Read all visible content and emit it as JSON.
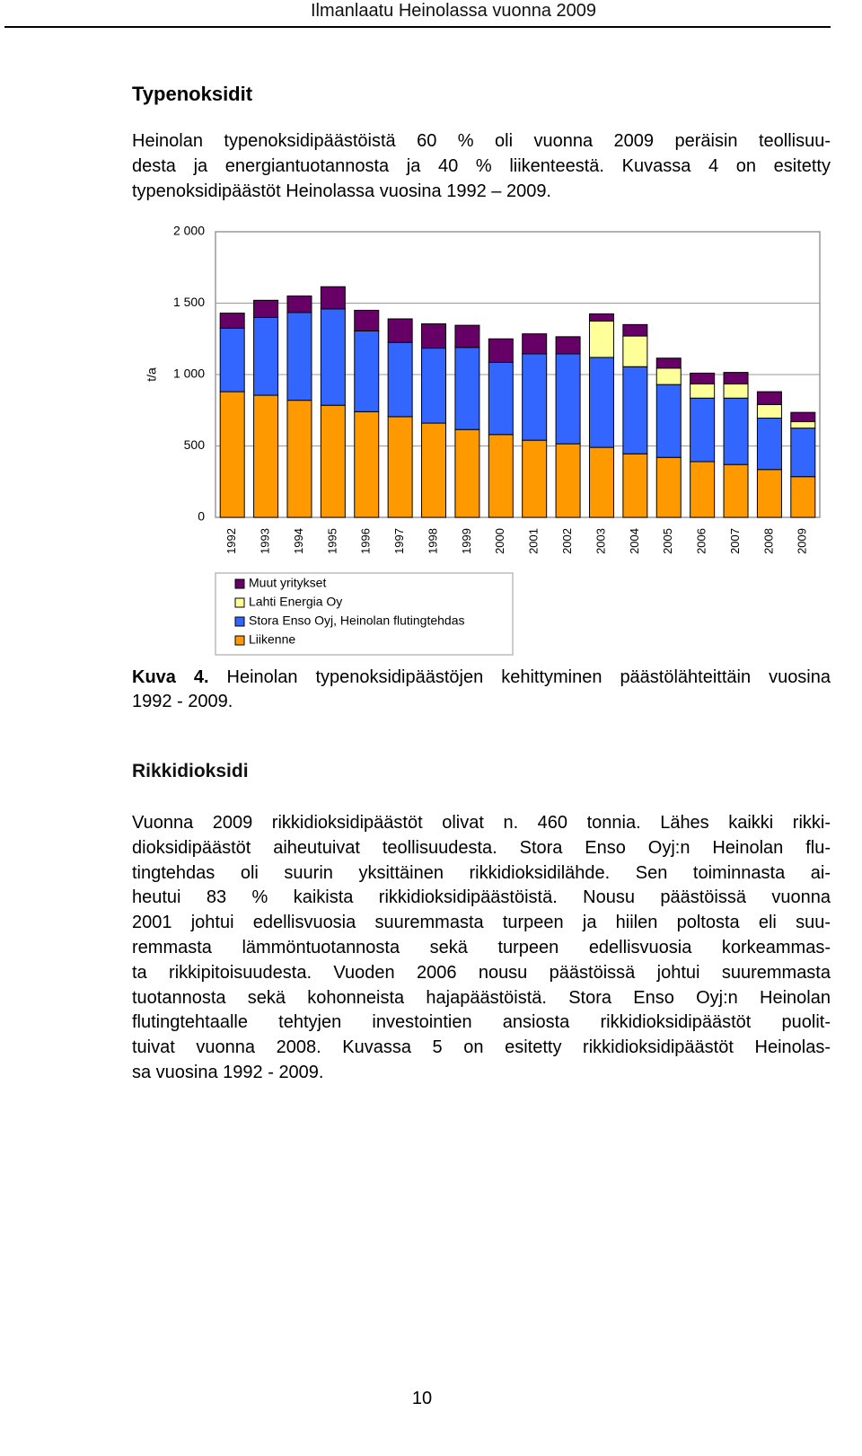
{
  "header": {
    "title": "Ilmanlaatu Heinolassa vuonna 2009"
  },
  "section1": {
    "heading": "Typenoksidit",
    "lines": [
      "Heinolan typenoksidipäästöistä 60 % oli vuonna 2009 peräisin teollisuu-",
      "desta ja energiantuotannosta ja 40 % liikenteestä. Kuvassa 4 on esitetty",
      "typenoksidipäästöt Heinolassa vuosina 1992 – 2009."
    ]
  },
  "chart_data": {
    "type": "stacked_bar",
    "y_label": "t/a",
    "categories": [
      "1992",
      "1993",
      "1994",
      "1995",
      "1996",
      "1997",
      "1998",
      "1999",
      "2000",
      "2001",
      "2002",
      "2003",
      "2004",
      "2005",
      "2006",
      "2007",
      "2008",
      "2009"
    ],
    "series": [
      {
        "name": "Liikenne",
        "color": "#ff9900",
        "values": [
          880,
          855,
          820,
          785,
          740,
          705,
          660,
          615,
          580,
          540,
          515,
          490,
          445,
          420,
          390,
          370,
          335,
          285
        ]
      },
      {
        "name": "Stora Enso Oyj, Heinolan flutingtehdas",
        "color": "#3366ff",
        "values": [
          445,
          545,
          615,
          675,
          565,
          520,
          525,
          575,
          505,
          605,
          630,
          630,
          610,
          510,
          445,
          465,
          360,
          340
        ]
      },
      {
        "name": "Lahti Energia Oy",
        "color": "#ffff99",
        "values": [
          0,
          0,
          0,
          0,
          0,
          0,
          0,
          0,
          0,
          0,
          0,
          255,
          215,
          115,
          100,
          100,
          95,
          45
        ]
      },
      {
        "name": "Muut yritykset",
        "color": "#660066",
        "values": [
          105,
          120,
          115,
          155,
          145,
          165,
          170,
          155,
          165,
          140,
          120,
          50,
          80,
          70,
          75,
          80,
          90,
          65
        ]
      }
    ],
    "ylim": [
      0,
      2000
    ],
    "yticks": [
      0,
      500,
      {
        "value": 1000,
        "label": "1 000"
      },
      {
        "value": 1500,
        "label": "1 500"
      },
      {
        "value": 2000,
        "label": "2 000"
      }
    ],
    "grid": true
  },
  "caption": {
    "label": "Kuva 4.",
    "lines": [
      "Heinolan typenoksidipäästöjen kehittyminen päästölähteittäin vuosina",
      "1992 - 2009."
    ]
  },
  "section2": {
    "heading": "Rikkidioksidi",
    "lines": [
      "Vuonna 2009 rikkidioksidipäästöt olivat n. 460 tonnia. Lähes kaikki rikki-",
      "dioksidipäästöt aiheutuivat teollisuudesta. Stora Enso Oyj:n Heinolan flu-",
      "tingtehdas oli suurin yksittäinen rikkidioksidilähde. Sen toiminnasta ai-",
      "heutui 83 % kaikista rikkidioksidipäästöistä. Nousu päästöissä vuonna",
      "2001 johtui edellisvuosia suuremmasta turpeen ja hiilen poltosta eli suu-",
      "remmasta lämmöntuotannosta sekä turpeen edellisvuosia korkeammas-",
      "ta rikkipitoisuudesta. Vuoden 2006 nousu päästöissä johtui suuremmasta",
      "tuotannosta sekä kohonneista hajapäästöistä. Stora Enso Oyj:n Heinolan",
      "flutingtehtaalle tehtyjen investointien ansiosta rikkidioksidipäästöt puolit-",
      "tuivat vuonna 2008. Kuvassa 5 on esitetty rikkidioksidipäästöt Heinolas-",
      "sa vuosina 1992 - 2009."
    ]
  },
  "footer": {
    "page_number": "10"
  }
}
